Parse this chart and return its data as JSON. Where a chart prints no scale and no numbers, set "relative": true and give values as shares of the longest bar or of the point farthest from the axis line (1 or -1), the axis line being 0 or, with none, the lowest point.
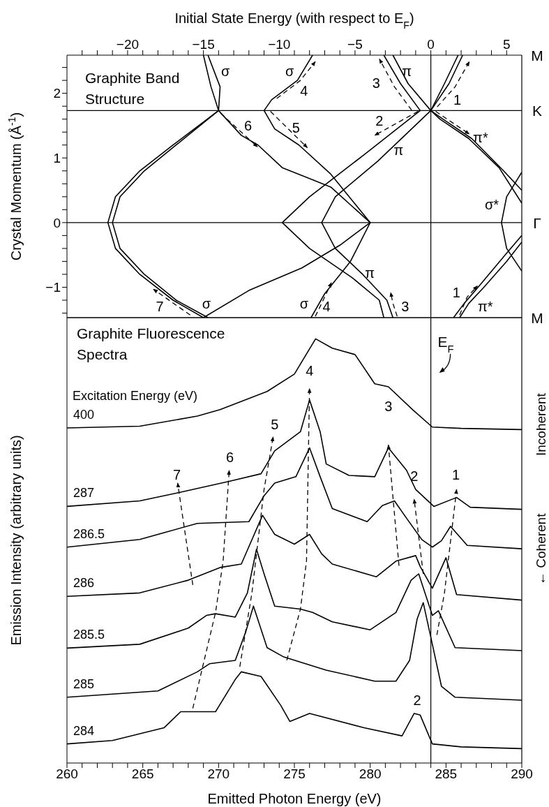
{
  "chart_data": [
    {
      "type": "line",
      "xlabel": "Initial State Energy (with respect to E$_{F}$)",
      "ylabel": "Crystal Momentum (Å$^{-1}$)",
      "xlim": [
        -24,
        6
      ],
      "xticks": [
        {
          "value": -23,
          "label": null
        },
        {
          "value": -22,
          "label": null
        },
        {
          "value": -21,
          "label": null
        },
        {
          "value": -20,
          "label": "−20"
        },
        {
          "value": -19,
          "label": null
        },
        {
          "value": -18,
          "label": null
        },
        {
          "value": -17,
          "label": null
        },
        {
          "value": -16,
          "label": null
        },
        {
          "value": -15,
          "label": "−15"
        },
        {
          "value": -14,
          "label": null
        },
        {
          "value": -13,
          "label": null
        },
        {
          "value": -12,
          "label": null
        },
        {
          "value": -11,
          "label": null
        },
        {
          "value": -10,
          "label": "−10"
        },
        {
          "value": -9,
          "label": null
        },
        {
          "value": -8,
          "label": null
        },
        {
          "value": -7,
          "label": null
        },
        {
          "value": -6,
          "label": null
        },
        {
          "value": -5,
          "label": "−5"
        },
        {
          "value": -4,
          "label": null
        },
        {
          "value": -3,
          "label": null
        },
        {
          "value": -2,
          "label": null
        },
        {
          "value": -1,
          "label": null
        },
        0,
        {
          "value": 1,
          "label": null
        },
        {
          "value": 2,
          "label": null
        },
        {
          "value": 3,
          "label": null
        },
        {
          "value": 4,
          "label": null
        },
        5
      ],
      "ylim": [
        -1.47,
        2.59
      ],
      "yticks": [
        {
          "value": -1.4,
          "label": null
        },
        {
          "value": -1.2,
          "label": null
        },
        {
          "value": -1,
          "label": "−1"
        },
        {
          "value": -0.8,
          "label": null
        },
        {
          "value": -0.6,
          "label": null
        },
        {
          "value": -0.4,
          "label": null
        },
        {
          "value": -0.2,
          "label": null
        },
        0,
        {
          "value": 0.2,
          "label": null
        },
        {
          "value": 0.4,
          "label": null
        },
        {
          "value": 0.6,
          "label": null
        },
        {
          "value": 0.8,
          "label": null
        },
        1,
        {
          "value": 1.2,
          "label": null
        },
        {
          "value": 1.4,
          "label": null
        },
        {
          "value": 1.6,
          "label": null
        },
        {
          "value": 1.8,
          "label": null
        },
        2,
        {
          "value": 2.2,
          "label": null
        },
        {
          "value": 2.4,
          "label": null
        }
      ],
      "ref_lines": [
        {
          "axis": "y",
          "value": 0,
          "label": "Γ"
        },
        {
          "axis": "y",
          "value": 1.733,
          "label": "K"
        },
        {
          "axis": "x",
          "value": 0
        }
      ],
      "annotations": [
        "Graphite Band Structure",
        "σ",
        "σ",
        "4",
        "3",
        "π",
        "1",
        "2",
        "6",
        "5",
        "π*",
        "π",
        "σ*",
        "π",
        "7",
        "σ",
        "σ",
        "4",
        "3",
        "1",
        "π*",
        "M",
        "M"
      ],
      "series": [
        {
          "color": "#000000",
          "x": [
            -15.0,
            -17,
            -19.2,
            -20.8,
            -21.3,
            -20.8,
            -19.2,
            -17,
            -14.0,
            -14.5,
            -15.0
          ],
          "values": [
            -1.47,
            -1.2,
            -0.8,
            -0.4,
            0,
            0.4,
            0.8,
            1.2,
            1.733,
            2.1,
            2.59
          ]
        },
        {
          "color": "#000000",
          "x": [
            -14.7,
            -16.8,
            -18.9,
            -20.5,
            -21.0,
            -20.5,
            -18.9,
            -16.8,
            -14.0,
            -13.9,
            -14.7
          ],
          "values": [
            -1.47,
            -1.2,
            -0.8,
            -0.4,
            0,
            0.4,
            0.8,
            1.2,
            1.733,
            2.1,
            2.59
          ]
        },
        {
          "color": "#000000",
          "x": [
            -14.0,
            -12.5,
            -11.4,
            -9.8,
            -6.6,
            -4.0,
            -6,
            -8.5,
            -12,
            -15.0
          ],
          "values": [
            1.733,
            1.35,
            1.2,
            0.85,
            0.55,
            0,
            -0.35,
            -0.7,
            -1.05,
            -1.47
          ]
        },
        {
          "color": "#000000",
          "x": [
            -7.8,
            -8.8,
            -10.5,
            -11.0,
            -10.3,
            -8.7,
            -6.6,
            -4.0,
            -5.3,
            -7.0,
            -7.9
          ],
          "values": [
            2.59,
            2.2,
            1.9,
            1.733,
            1.45,
            1.2,
            0.75,
            0,
            -0.6,
            -1.1,
            -1.47
          ]
        },
        {
          "color": "#000000",
          "x": [
            -3.1,
            -3.4,
            -5.2,
            -8.0,
            -9.8,
            -8.0,
            -4.4,
            -0.7,
            -2.0,
            -3.1
          ],
          "values": [
            -1.47,
            -1.2,
            -0.85,
            -0.4,
            0,
            0.4,
            1.05,
            1.733,
            2.15,
            2.59
          ]
        },
        {
          "color": "#000000",
          "x": [
            -2.5,
            -2.9,
            -4.5,
            -6.3,
            -7.2,
            -6.3,
            -3.5,
            0,
            -1.5,
            -2.5
          ],
          "values": [
            -1.47,
            -1.2,
            -0.8,
            -0.4,
            0,
            0.4,
            0.95,
            1.733,
            2.15,
            2.59
          ]
        },
        {
          "color": "#000000",
          "x": [
            2.1,
            1.2,
            0,
            0.6,
            2.5,
            4.5,
            6
          ],
          "values": [
            2.59,
            2.15,
            1.733,
            1.6,
            1.3,
            0.85,
            0.3
          ]
        },
        {
          "color": "#000000",
          "x": [
            1.8,
            0.9,
            0,
            0.8,
            2.7,
            4.8,
            6
          ],
          "values": [
            2.59,
            2.15,
            1.733,
            1.6,
            1.3,
            0.8,
            0.5
          ]
        },
        {
          "color": "#000000",
          "x": [
            1.9,
            2.5,
            3.5,
            5,
            6
          ],
          "values": [
            -1.47,
            -1.25,
            -1.0,
            -0.6,
            -0.3
          ]
        },
        {
          "color": "#000000",
          "x": [
            1.5,
            2.2,
            3.3,
            4.9,
            6
          ],
          "values": [
            -1.47,
            -1.25,
            -0.95,
            -0.5,
            -0.2
          ]
        },
        {
          "color": "#000000",
          "x": [
            6,
            5,
            4.66,
            5,
            6
          ],
          "values": [
            0.78,
            0.4,
            0,
            -0.4,
            -0.75
          ]
        },
        {
          "color": "#000000",
          "line_style": "dashed",
          "x": [
            -15.87,
            -18.3
          ],
          "values": [
            -1.43,
            -1.03
          ]
        },
        {
          "color": "#000000",
          "line_style": "dashed",
          "x": [
            -13.86,
            -11.43
          ],
          "values": [
            1.69,
            1.17
          ]
        },
        {
          "color": "#000000",
          "line_style": "dashed",
          "x": [
            -10.58,
            -8.15
          ],
          "values": [
            1.72,
            1.16
          ]
        },
        {
          "color": "#000000",
          "line_style": "dashed",
          "x": [
            -10.16,
            -8.6,
            -7.62
          ],
          "values": [
            1.92,
            2.2,
            2.49
          ]
        },
        {
          "color": "#000000",
          "line_style": "dashed",
          "x": [
            -1.27,
            -2.4,
            -3.39
          ],
          "values": [
            1.74,
            2.1,
            2.53
          ]
        },
        {
          "color": "#000000",
          "line_style": "dashed",
          "x": [
            -0.85,
            -3.7
          ],
          "values": [
            1.72,
            1.35
          ]
        },
        {
          "color": "#000000",
          "line_style": "dashed",
          "x": [
            0.32,
            2.54
          ],
          "values": [
            1.72,
            1.37
          ]
        },
        {
          "color": "#000000",
          "line_style": "dashed",
          "x": [
            0.42,
            1.6,
            2.54
          ],
          "values": [
            1.79,
            2.1,
            2.49
          ]
        },
        {
          "color": "#000000",
          "line_style": "dashed",
          "x": [
            -7.62,
            -7.1,
            -6.56
          ],
          "values": [
            -1.45,
            -1.2,
            -0.93
          ]
        },
        {
          "color": "#000000",
          "line_style": "dashed",
          "x": [
            -2.22,
            -2.5,
            -2.65
          ],
          "values": [
            -1.45,
            -1.25,
            -1.08
          ]
        },
        {
          "color": "#000000",
          "line_style": "dashed",
          "x": [
            1.9,
            2.4,
            3.07
          ],
          "values": [
            -1.43,
            -1.15,
            -0.98
          ]
        }
      ]
    },
    {
      "type": "line",
      "relative": true,
      "xlabel": "Emitted Photon Energy (eV)",
      "ylabel": "Emission Intensity (arbitrary units)",
      "xlim": [
        260,
        290
      ],
      "xticks": [
        260,
        {
          "value": 261,
          "label": null
        },
        {
          "value": 262,
          "label": null
        },
        {
          "value": 263,
          "label": null
        },
        {
          "value": 264,
          "label": null
        },
        265,
        {
          "value": 266,
          "label": null
        },
        {
          "value": 267,
          "label": null
        },
        {
          "value": 268,
          "label": null
        },
        {
          "value": 269,
          "label": null
        },
        270,
        {
          "value": 271,
          "label": null
        },
        {
          "value": 272,
          "label": null
        },
        {
          "value": 273,
          "label": null
        },
        {
          "value": 274,
          "label": null
        },
        275,
        {
          "value": 276,
          "label": null
        },
        {
          "value": 277,
          "label": null
        },
        {
          "value": 278,
          "label": null
        },
        {
          "value": 279,
          "label": null
        },
        280,
        {
          "value": 281,
          "label": null
        },
        {
          "value": 282,
          "label": null
        },
        {
          "value": 283,
          "label": null
        },
        {
          "value": 284,
          "label": null
        },
        285,
        {
          "value": 286,
          "label": null
        },
        {
          "value": 287,
          "label": null
        },
        {
          "value": 288,
          "label": null
        },
        {
          "value": 289,
          "label": null
        },
        290
      ],
      "ref_lines": [
        {
          "axis": "x",
          "value": 284,
          "label": "E$_{F}$"
        }
      ],
      "annotations": [
        "Graphite Fluorescence Spectra",
        "Excitation Energy (eV)",
        "Incoherent",
        "← Coherent",
        "4",
        "5",
        "3",
        "6",
        "7",
        "2",
        "1",
        "2"
      ],
      "series": [
        {
          "name": "400",
          "color": "#000000",
          "x": [
            260,
            264.8,
            268.6,
            270.1,
            273.2,
            275.0,
            276.4,
            277.5,
            279.0,
            280.3,
            281.2,
            282.8,
            284.1,
            286.0,
            290
          ],
          "values": [
            0.79,
            0.794,
            0.818,
            0.833,
            0.876,
            0.917,
            1.0,
            0.978,
            0.963,
            0.894,
            0.887,
            0.833,
            0.792,
            0.789,
            0.786
          ]
        },
        {
          "name": "287",
          "color": "#000000",
          "x": [
            260,
            264.8,
            267.3,
            270.7,
            272.8,
            273.7,
            275.4,
            276.0,
            276.7,
            277.1,
            278.6,
            280.3,
            281.2,
            282.4,
            283.0,
            284.2,
            285.7,
            286.6,
            290
          ],
          "values": [
            0.605,
            0.618,
            0.637,
            0.664,
            0.682,
            0.736,
            0.781,
            0.856,
            0.781,
            0.705,
            0.678,
            0.675,
            0.743,
            0.69,
            0.645,
            0.605,
            0.626,
            0.603,
            0.598
          ]
        },
        {
          "name": "286.5",
          "color": "#000000",
          "x": [
            260,
            264.8,
            268.6,
            272.0,
            273.0,
            273.7,
            275.1,
            276.0,
            276.7,
            277.5,
            279.8,
            280.8,
            281.6,
            282.4,
            283.4,
            284.1,
            284.7,
            285.3,
            286.4,
            290
          ],
          "values": [
            0.509,
            0.527,
            0.565,
            0.569,
            0.63,
            0.66,
            0.675,
            0.743,
            0.675,
            0.6,
            0.569,
            0.607,
            0.618,
            0.577,
            0.527,
            0.509,
            0.524,
            0.558,
            0.513,
            0.505
          ]
        },
        {
          "name": "286",
          "color": "#000000",
          "x": [
            260,
            264.8,
            268.0,
            270.1,
            271.5,
            272.9,
            273.7,
            275.0,
            276.0,
            276.8,
            277.5,
            280.4,
            281.7,
            283.0,
            283.3,
            284.1,
            285.0,
            285.7,
            290
          ],
          "values": [
            0.393,
            0.401,
            0.431,
            0.461,
            0.469,
            0.584,
            0.539,
            0.516,
            0.539,
            0.493,
            0.469,
            0.439,
            0.476,
            0.489,
            0.463,
            0.412,
            0.484,
            0.397,
            0.384
          ]
        },
        {
          "name": "285.5",
          "color": "#000000",
          "x": [
            260,
            264.8,
            268.0,
            269.2,
            269.8,
            271.1,
            271.9,
            272.5,
            273.0,
            273.7,
            275.4,
            276.2,
            277.5,
            280.0,
            281.7,
            282.7,
            283.2,
            284.1,
            284.5,
            285.6,
            290
          ],
          "values": [
            0.271,
            0.28,
            0.318,
            0.348,
            0.352,
            0.344,
            0.401,
            0.504,
            0.446,
            0.37,
            0.363,
            0.355,
            0.333,
            0.314,
            0.355,
            0.431,
            0.446,
            0.348,
            0.359,
            0.272,
            0.265
          ]
        },
        {
          "name": "285",
          "color": "#000000",
          "x": [
            260,
            266.0,
            268.6,
            269.4,
            271.1,
            271.8,
            272.3,
            273.2,
            274.3,
            277.1,
            280.3,
            281.7,
            282.6,
            283.1,
            283.5,
            284.1,
            284.7,
            285.6,
            290
          ],
          "values": [
            0.155,
            0.17,
            0.215,
            0.234,
            0.242,
            0.31,
            0.37,
            0.272,
            0.25,
            0.219,
            0.193,
            0.193,
            0.242,
            0.34,
            0.378,
            0.28,
            0.181,
            0.155,
            0.148
          ]
        },
        {
          "name": "284",
          "color": "#000000",
          "x": [
            260,
            263.0,
            266.4,
            267.5,
            269.8,
            271.1,
            271.5,
            272.8,
            274.1,
            274.7,
            276.0,
            279.6,
            282.1,
            282.9,
            283.3,
            284.1,
            286.0,
            290
          ],
          "values": [
            0.045,
            0.053,
            0.083,
            0.121,
            0.121,
            0.197,
            0.215,
            0.204,
            0.136,
            0.098,
            0.117,
            0.083,
            0.064,
            0.117,
            0.113,
            0.045,
            0.038,
            0.034
          ]
        },
        {
          "color": "#000000",
          "line_style": "dashed",
          "x": [
            268.3,
            267.3
          ],
          "values": [
            0.42,
            0.66
          ]
        },
        {
          "color": "#000000",
          "line_style": "dashed",
          "x": [
            268.3,
            269.8,
            270.3,
            270.7
          ],
          "values": [
            0.129,
            0.355,
            0.476,
            0.69
          ]
        },
        {
          "color": "#000000",
          "line_style": "dashed",
          "x": [
            271.4,
            272.2,
            273.0,
            273.6
          ],
          "values": [
            0.227,
            0.401,
            0.645,
            0.769
          ]
        },
        {
          "color": "#000000",
          "line_style": "dashed",
          "x": [
            274.5,
            275.4,
            275.8,
            276.0
          ],
          "values": [
            0.242,
            0.363,
            0.476,
            0.883
          ]
        },
        {
          "color": "#000000",
          "line_style": "dashed",
          "x": [
            281.9,
            281.2
          ],
          "values": [
            0.465,
            0.75
          ]
        },
        {
          "color": "#000000",
          "line_style": "dashed",
          "x": [
            283.5,
            282.9
          ],
          "values": [
            0.446,
            0.622
          ]
        },
        {
          "color": "#000000",
          "line_style": "dashed",
          "x": [
            284.4,
            284.9,
            285.7
          ],
          "values": [
            0.302,
            0.401,
            0.645
          ]
        }
      ]
    }
  ]
}
